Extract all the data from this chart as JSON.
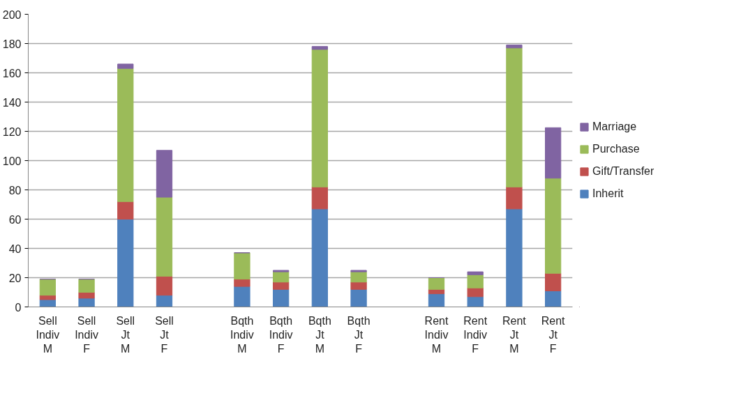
{
  "chart_data": {
    "type": "bar",
    "stacked": true,
    "categories": [
      "Sell Indiv M",
      "Sell Indiv F",
      "Sell Jt M",
      "Sell Jt F",
      null,
      "Bqth Indiv M",
      "Bqth Indiv F",
      "Bqth Jt M",
      "Bqth Jt F",
      null,
      "Rent Indiv M",
      "Rent Indiv F",
      "Rent Jt M",
      "Rent Jt F"
    ],
    "series": [
      {
        "name": "Inherit",
        "color": "#4f81bd",
        "values": [
          5,
          6,
          60,
          8,
          null,
          14,
          12,
          67,
          12,
          null,
          9,
          7,
          67,
          11
        ]
      },
      {
        "name": "Gift/Transfer",
        "color": "#c0504d",
        "values": [
          3,
          4,
          12,
          13,
          null,
          5,
          5,
          15,
          5,
          null,
          3,
          6,
          15,
          12
        ]
      },
      {
        "name": "Purchase",
        "color": "#9bbb59",
        "values": [
          11,
          9,
          91,
          54,
          null,
          18,
          7,
          94,
          7,
          null,
          8,
          9,
          95,
          65
        ]
      },
      {
        "name": "Marriage",
        "color": "#8064a2",
        "values": [
          0,
          0,
          3,
          32,
          null,
          0,
          1,
          2,
          1,
          null,
          0,
          2,
          2,
          34.5
        ]
      }
    ],
    "ylim": [
      0,
      200
    ],
    "yticks": [
      0,
      20,
      40,
      60,
      80,
      100,
      120,
      140,
      160,
      180,
      200
    ],
    "grid": "y",
    "legend": "right"
  }
}
